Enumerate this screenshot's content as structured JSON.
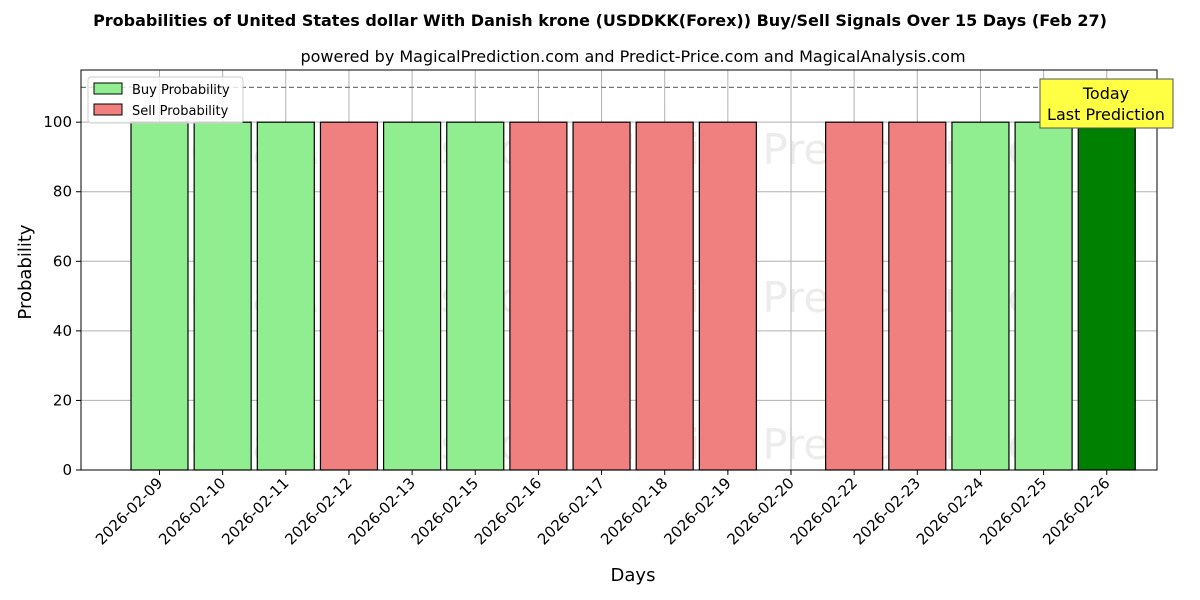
{
  "chart_data": {
    "type": "bar",
    "title": "Probabilities of United States dollar With Danish krone (USDDKK(Forex)) Buy/Sell Signals Over 15 Days (Feb 27)",
    "subtitle": "powered by MagicalPrediction.com and Predict-Price.com and MagicalAnalysis.com",
    "xlabel": "Days",
    "ylabel": "Probability",
    "ylim": [
      0,
      115
    ],
    "yticks": [
      0,
      20,
      40,
      60,
      80,
      100
    ],
    "reference_line": 110,
    "grid": true,
    "legend_position": "top-left",
    "categories": [
      "2026-02-09",
      "2026-02-10",
      "2026-02-11",
      "2026-02-12",
      "2026-02-13",
      "2026-02-15",
      "2026-02-16",
      "2026-02-17",
      "2026-02-18",
      "2026-02-19",
      "2026-02-20",
      "2026-02-22",
      "2026-02-23",
      "2026-02-24",
      "2026-02-25",
      "2026-02-26"
    ],
    "series": [
      {
        "name": "Buy Probability",
        "color": "#90ee90",
        "values": [
          100,
          100,
          100,
          0,
          100,
          100,
          0,
          0,
          0,
          0,
          0,
          0,
          0,
          100,
          100,
          100
        ]
      },
      {
        "name": "Sell Probability",
        "color": "#f08080",
        "values": [
          0,
          0,
          0,
          100,
          0,
          0,
          100,
          100,
          100,
          100,
          0,
          100,
          100,
          0,
          0,
          0
        ]
      }
    ],
    "highlight": {
      "index": 15,
      "color": "#008000"
    },
    "annotation": {
      "lines": [
        "Today",
        "Last Prediction"
      ],
      "color": "#ffff44"
    },
    "watermarks": [
      "MagicalAnalysis.com",
      "Magica Prediction.com"
    ]
  }
}
